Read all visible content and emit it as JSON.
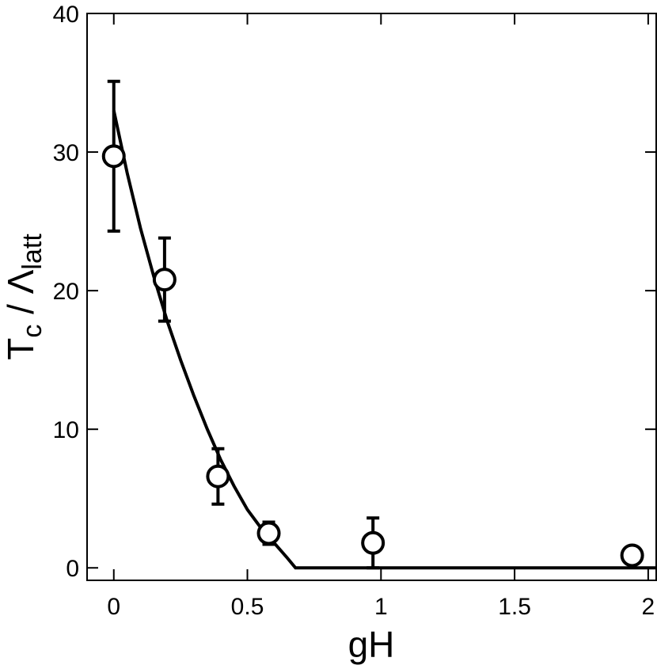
{
  "chart_data": {
    "type": "scatter",
    "xlabel": "gH",
    "ylabel": {
      "main": "T",
      "sub": "c",
      "middle": " / Λ",
      "sub2": "latt"
    },
    "xlim": [
      -0.1,
      2.03
    ],
    "ylim": [
      -0.9,
      40
    ],
    "xticks": [
      0,
      0.5,
      1,
      1.5,
      2
    ],
    "yticks": [
      0,
      10,
      20,
      30,
      40
    ],
    "color": "#000000",
    "x": [
      0,
      0.19,
      0.39,
      0.58,
      0.97,
      1.94
    ],
    "values": [
      29.7,
      20.8,
      6.6,
      2.5,
      1.8,
      0.9
    ],
    "errors": [
      5.4,
      3.0,
      2.0,
      0.8,
      1.8,
      0.3
    ],
    "fit": {
      "x": [
        0,
        0.05,
        0.1,
        0.15,
        0.2,
        0.25,
        0.3,
        0.35,
        0.4,
        0.45,
        0.5,
        0.55,
        0.6,
        0.65,
        0.68,
        2.03
      ],
      "values": [
        33,
        28.5,
        24.5,
        21,
        17.8,
        15,
        12.4,
        10,
        7.8,
        5.9,
        4.2,
        2.9,
        1.8,
        0.7,
        0,
        0
      ]
    }
  }
}
